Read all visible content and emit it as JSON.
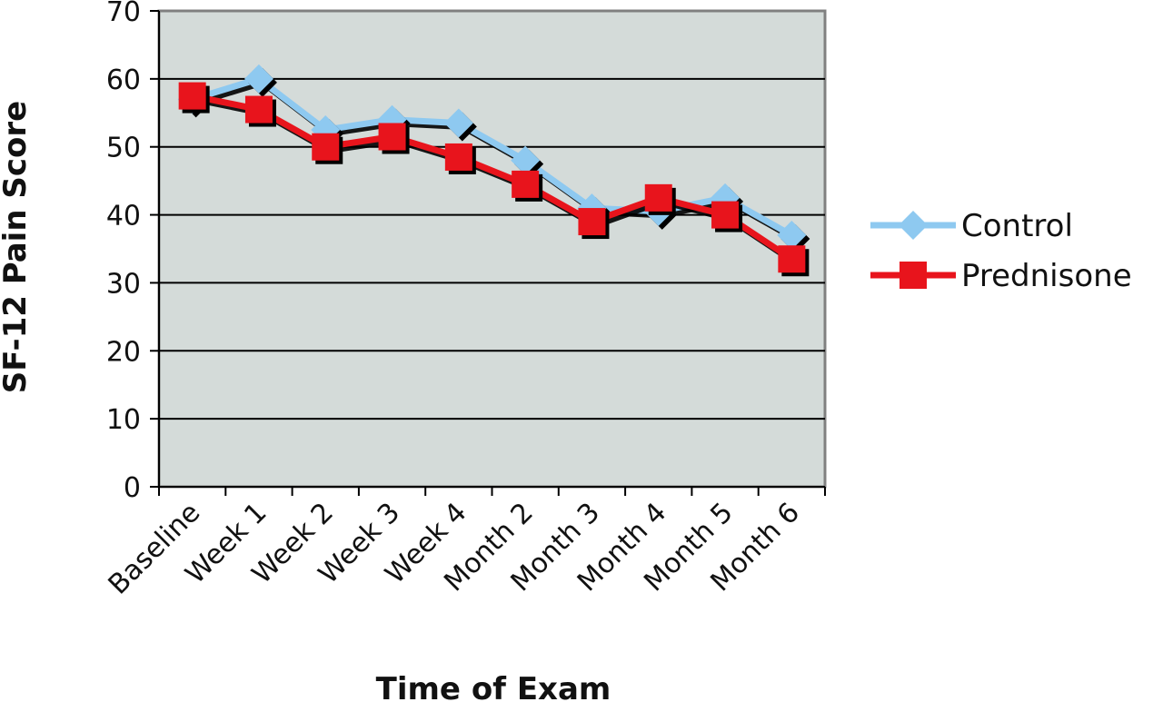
{
  "chart_data": {
    "type": "line",
    "title": "",
    "xlabel": "Time of Exam",
    "ylabel": "SF-12 Pain Score",
    "categories": [
      "Baseline",
      "Week 1",
      "Week 2",
      "Week 3",
      "Week 4",
      "Month 2",
      "Month 3",
      "Month 4",
      "Month 5",
      "Month 6"
    ],
    "ylim": [
      0,
      70
    ],
    "yticks": [
      "0",
      "10",
      "20",
      "30",
      "40",
      "50",
      "60",
      "70"
    ],
    "grid": "horizontal",
    "legend_position": "right",
    "plot_background": "#d4dbd9",
    "series": [
      {
        "name": "Control",
        "color": "#8ec9f0",
        "marker": "diamond",
        "values": [
          57,
          60,
          52.5,
          54,
          53.5,
          48,
          41,
          40.5,
          42.5,
          37
        ]
      },
      {
        "name": "Prednisone",
        "color": "#e8141c",
        "marker": "square",
        "values": [
          57.5,
          55.5,
          50,
          51.5,
          48.5,
          44.5,
          39,
          42.5,
          40,
          33.5
        ]
      }
    ]
  }
}
